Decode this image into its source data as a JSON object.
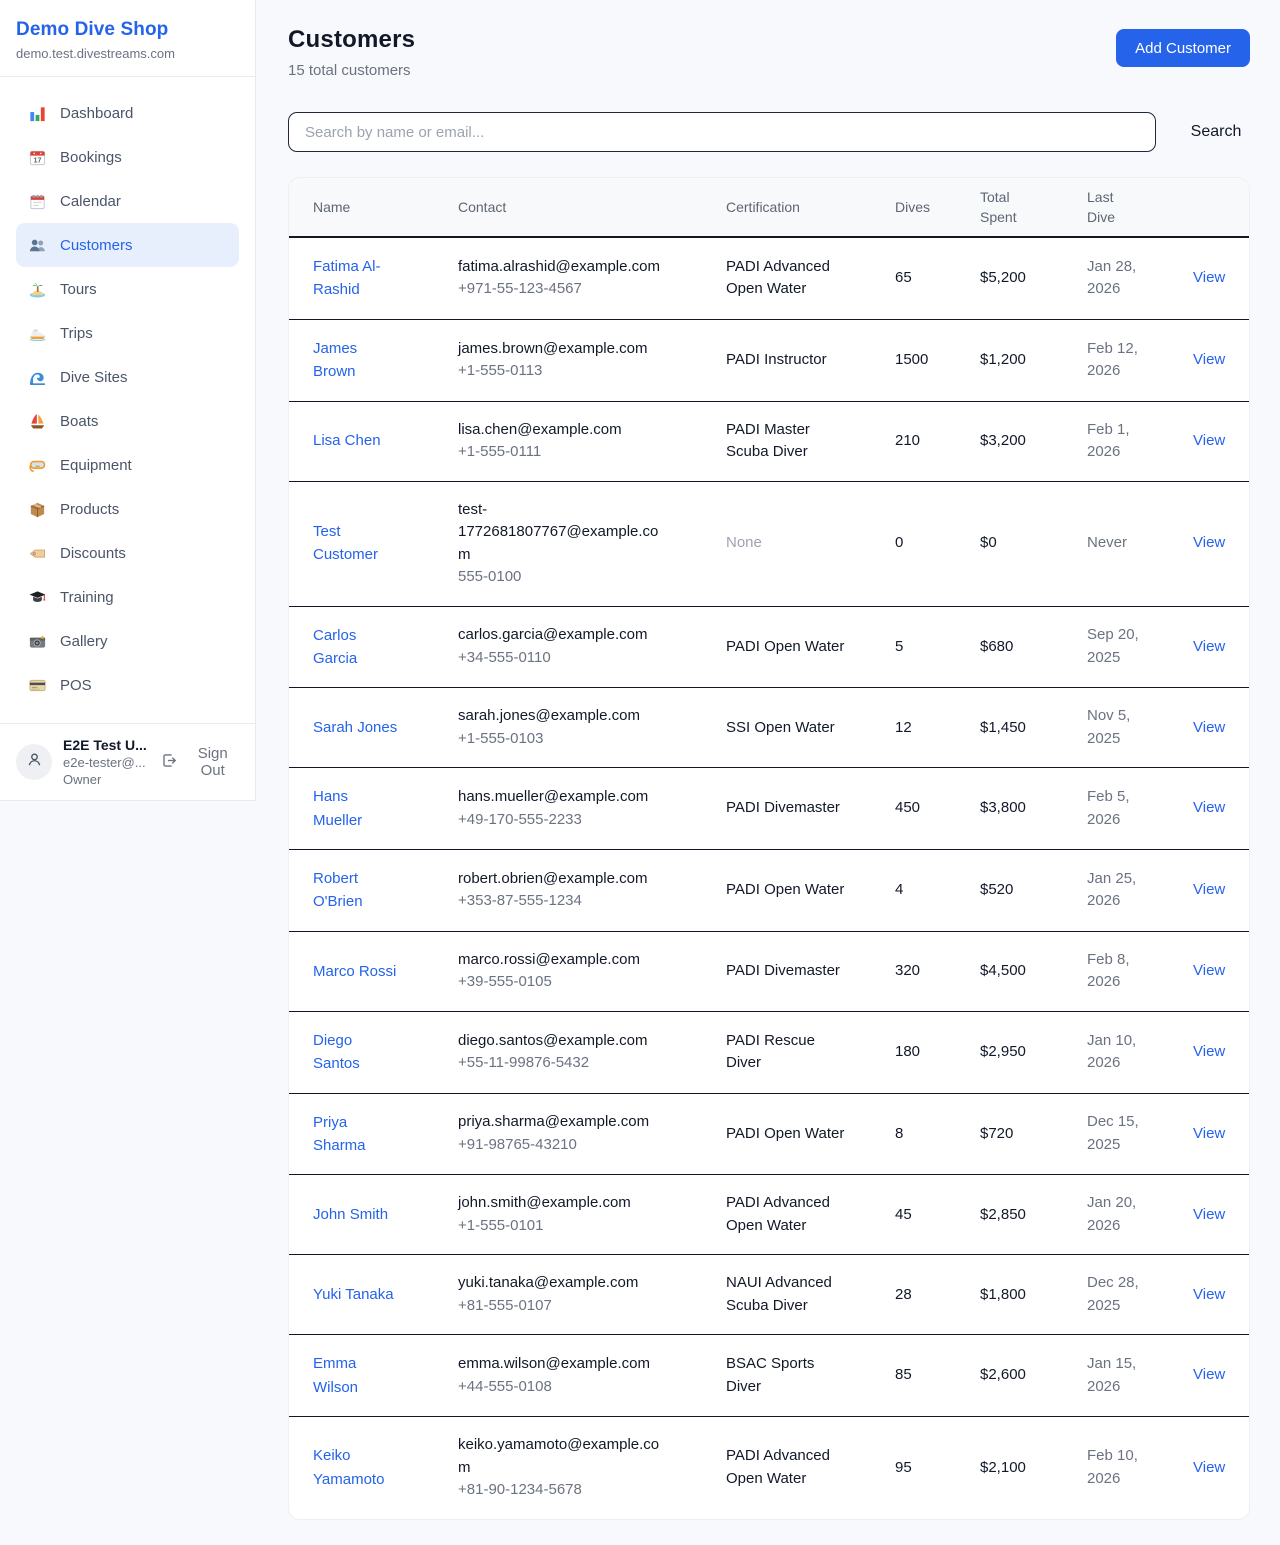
{
  "colors": {
    "accent": "#2563eb",
    "active_item_bg": "#e7effc",
    "link": "#2563eb",
    "row_border": "#111827"
  },
  "sidebar": {
    "brand": {
      "name": "Demo Dive Shop",
      "domain": "demo.test.divestreams.com"
    },
    "items": [
      {
        "label": "Dashboard",
        "icon_name": "bar-chart-icon",
        "active": false
      },
      {
        "label": "Bookings",
        "icon_name": "calendar-date-icon",
        "active": false
      },
      {
        "label": "Calendar",
        "icon_name": "spiral-calendar-icon",
        "active": false
      },
      {
        "label": "Customers",
        "icon_name": "people-icon",
        "active": true
      },
      {
        "label": "Tours",
        "icon_name": "island-icon",
        "active": false
      },
      {
        "label": "Trips",
        "icon_name": "speedboat-icon",
        "active": false
      },
      {
        "label": "Dive Sites",
        "icon_name": "wave-icon",
        "active": false
      },
      {
        "label": "Boats",
        "icon_name": "sailboat-icon",
        "active": false
      },
      {
        "label": "Equipment",
        "icon_name": "dive-mask-icon",
        "active": false
      },
      {
        "label": "Products",
        "icon_name": "package-icon",
        "active": false
      },
      {
        "label": "Discounts",
        "icon_name": "tag-icon",
        "active": false
      },
      {
        "label": "Training",
        "icon_name": "graduation-cap-icon",
        "active": false
      },
      {
        "label": "Gallery",
        "icon_name": "camera-icon",
        "active": false
      },
      {
        "label": "POS",
        "icon_name": "credit-card-icon",
        "active": false
      }
    ],
    "user": {
      "name": "E2E Test U...",
      "email": "e2e-tester@...",
      "role": "Owner",
      "sign_out_label": "Sign Out"
    }
  },
  "header": {
    "title": "Customers",
    "subtitle": "15 total customers",
    "add_button_label": "Add Customer"
  },
  "search": {
    "placeholder": "Search by name or email...",
    "button_label": "Search"
  },
  "table": {
    "columns": [
      "Name",
      "Contact",
      "Certification",
      "Dives",
      "Total Spent",
      "Last Dive"
    ],
    "action_label": "View",
    "rows": [
      {
        "name": "Fatima Al-Rashid",
        "email": "fatima.alrashid@example.com",
        "phone": "+971-55-123-4567",
        "certification": "PADI Advanced Open Water",
        "dives": "65",
        "total_spent": "$5,200",
        "last_dive": "Jan 28, 2026"
      },
      {
        "name": "James Brown",
        "email": "james.brown@example.com",
        "phone": "+1-555-0113",
        "certification": "PADI Instructor",
        "dives": "1500",
        "total_spent": "$1,200",
        "last_dive": "Feb 12, 2026"
      },
      {
        "name": "Lisa Chen",
        "email": "lisa.chen@example.com",
        "phone": "+1-555-0111",
        "certification": "PADI Master Scuba Diver",
        "dives": "210",
        "total_spent": "$3,200",
        "last_dive": "Feb 1, 2026"
      },
      {
        "name": "Test Customer",
        "email": "test-1772681807767@example.com",
        "phone": "555-0100",
        "certification": "None",
        "dives": "0",
        "total_spent": "$0",
        "last_dive": "Never"
      },
      {
        "name": "Carlos Garcia",
        "email": "carlos.garcia@example.com",
        "phone": "+34-555-0110",
        "certification": "PADI Open Water",
        "dives": "5",
        "total_spent": "$680",
        "last_dive": "Sep 20, 2025"
      },
      {
        "name": "Sarah Jones",
        "email": "sarah.jones@example.com",
        "phone": "+1-555-0103",
        "certification": "SSI Open Water",
        "dives": "12",
        "total_spent": "$1,450",
        "last_dive": "Nov 5, 2025"
      },
      {
        "name": "Hans Mueller",
        "email": "hans.mueller@example.com",
        "phone": "+49-170-555-2233",
        "certification": "PADI Divemaster",
        "dives": "450",
        "total_spent": "$3,800",
        "last_dive": "Feb 5, 2026"
      },
      {
        "name": "Robert O'Brien",
        "email": "robert.obrien@example.com",
        "phone": "+353-87-555-1234",
        "certification": "PADI Open Water",
        "dives": "4",
        "total_spent": "$520",
        "last_dive": "Jan 25, 2026"
      },
      {
        "name": "Marco Rossi",
        "email": "marco.rossi@example.com",
        "phone": "+39-555-0105",
        "certification": "PADI Divemaster",
        "dives": "320",
        "total_spent": "$4,500",
        "last_dive": "Feb 8, 2026"
      },
      {
        "name": "Diego Santos",
        "email": "diego.santos@example.com",
        "phone": "+55-11-99876-5432",
        "certification": "PADI Rescue Diver",
        "dives": "180",
        "total_spent": "$2,950",
        "last_dive": "Jan 10, 2026"
      },
      {
        "name": "Priya Sharma",
        "email": "priya.sharma@example.com",
        "phone": "+91-98765-43210",
        "certification": "PADI Open Water",
        "dives": "8",
        "total_spent": "$720",
        "last_dive": "Dec 15, 2025"
      },
      {
        "name": "John Smith",
        "email": "john.smith@example.com",
        "phone": "+1-555-0101",
        "certification": "PADI Advanced Open Water",
        "dives": "45",
        "total_spent": "$2,850",
        "last_dive": "Jan 20, 2026"
      },
      {
        "name": "Yuki Tanaka",
        "email": "yuki.tanaka@example.com",
        "phone": "+81-555-0107",
        "certification": "NAUI Advanced Scuba Diver",
        "dives": "28",
        "total_spent": "$1,800",
        "last_dive": "Dec 28, 2025"
      },
      {
        "name": "Emma Wilson",
        "email": "emma.wilson@example.com",
        "phone": "+44-555-0108",
        "certification": "BSAC Sports Diver",
        "dives": "85",
        "total_spent": "$2,600",
        "last_dive": "Jan 15, 2026"
      },
      {
        "name": "Keiko Yamamoto",
        "email": "keiko.yamamoto@example.com",
        "phone": "+81-90-1234-5678",
        "certification": "PADI Advanced Open Water",
        "dives": "95",
        "total_spent": "$2,100",
        "last_dive": "Feb 10, 2026"
      }
    ]
  }
}
